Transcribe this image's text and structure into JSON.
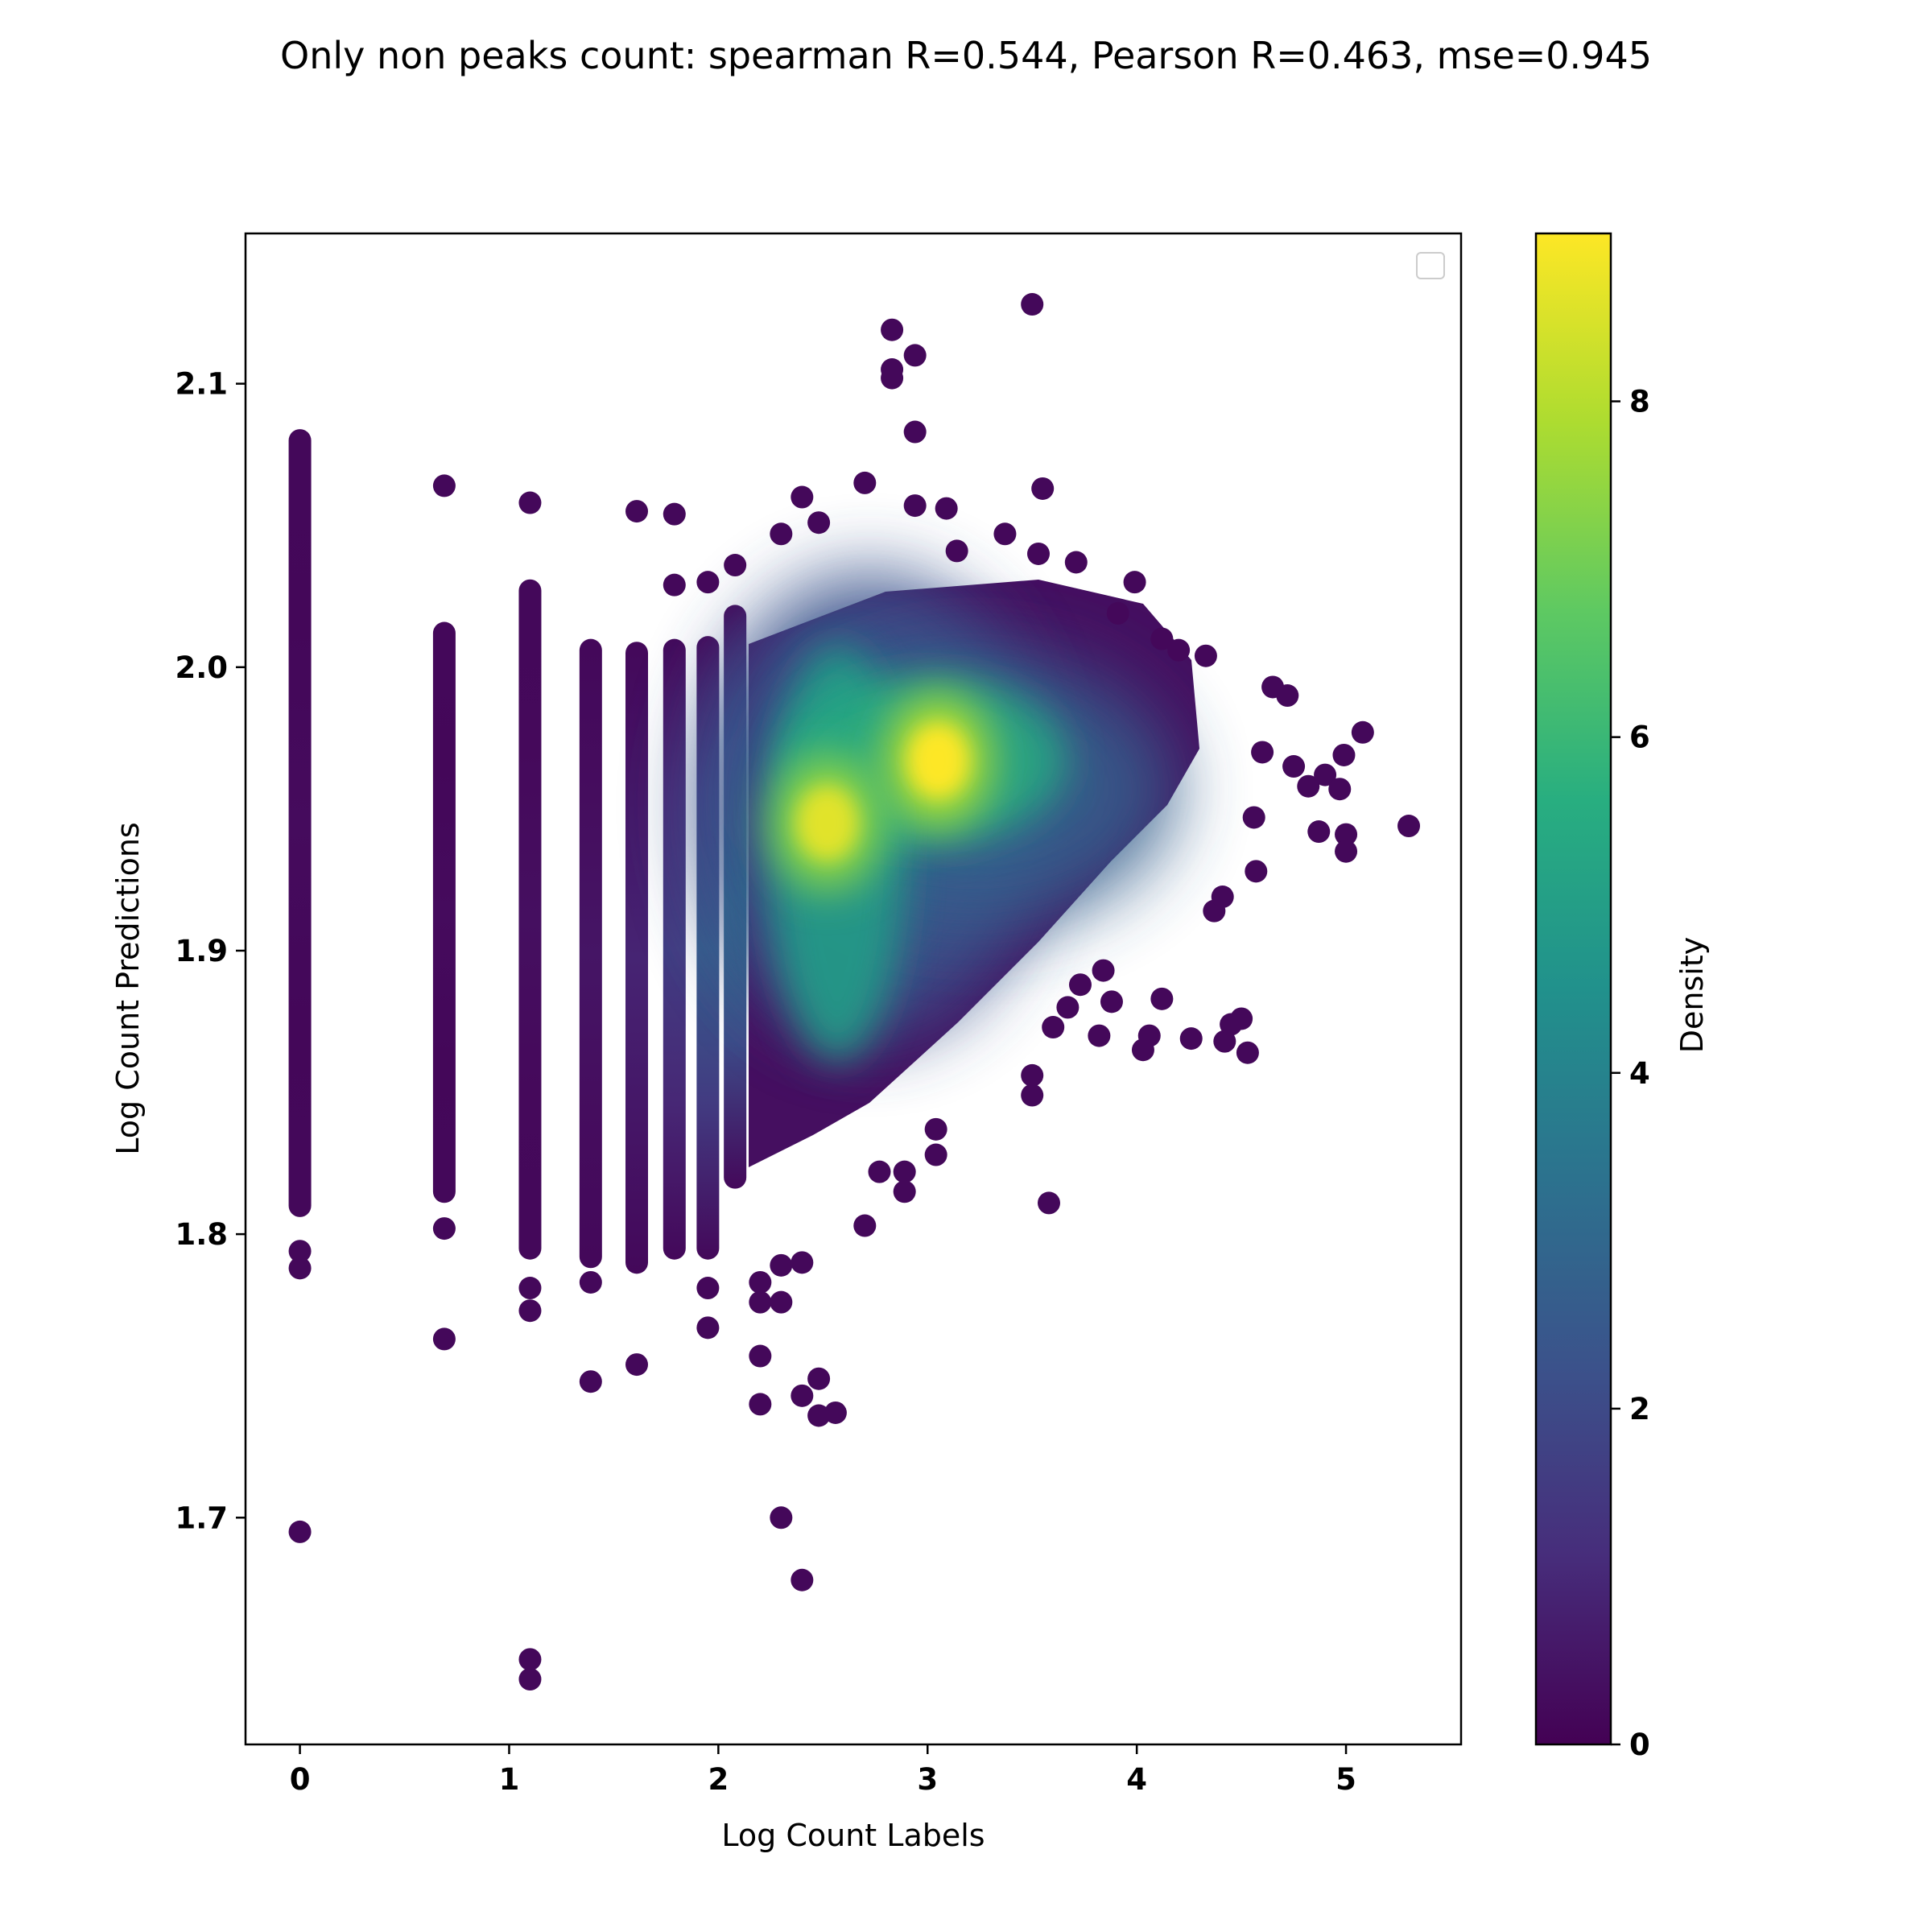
{
  "chart_data": {
    "type": "scatter",
    "title": "Only non peaks count: spearman R=0.544, Pearson R=0.463, mse=0.945",
    "xlabel": "Log Count Labels",
    "ylabel": "Log Count Predictions",
    "xlim": [
      -0.26,
      5.55
    ],
    "ylim": [
      1.62,
      2.153
    ],
    "x_ticks": [
      0,
      1,
      2,
      3,
      4,
      5
    ],
    "y_ticks": [
      1.7,
      1.8,
      1.9,
      2.0,
      2.1
    ],
    "x_tick_labels": [
      "0",
      "1",
      "2",
      "3",
      "4",
      "5"
    ],
    "y_tick_labels": [
      "1.7",
      "1.8",
      "1.9",
      "2.0",
      "2.1"
    ],
    "grid": false,
    "legend": "top-right (empty)",
    "colormap": "viridis",
    "colorbar": {
      "label": "Density",
      "range": [
        0,
        9.0
      ],
      "ticks": [
        0,
        2,
        4,
        6,
        8
      ],
      "tick_labels": [
        "0",
        "2",
        "4",
        "6",
        "8"
      ]
    },
    "density_peaks": [
      {
        "x": 3.05,
        "y": 1.967,
        "density": 9.0
      },
      {
        "x": 2.52,
        "y": 1.945,
        "density": 8.6
      }
    ],
    "columns": [
      {
        "x": 0.0,
        "ymin": 1.81,
        "ymax": 2.08,
        "density": 0.25
      },
      {
        "x": 0.69,
        "ymin": 1.815,
        "ymax": 2.012,
        "density": 0.25
      },
      {
        "x": 1.1,
        "ymin": 1.795,
        "ymax": 2.027,
        "density": 0.35
      },
      {
        "x": 1.39,
        "ymin": 1.792,
        "ymax": 2.006,
        "density": 0.5
      },
      {
        "x": 1.61,
        "ymin": 1.79,
        "ymax": 2.005,
        "density": 0.9
      },
      {
        "x": 1.79,
        "ymin": 1.795,
        "ymax": 2.006,
        "density": 1.6
      },
      {
        "x": 1.95,
        "ymin": 1.795,
        "ymax": 2.007,
        "density": 2.6
      },
      {
        "x": 2.08,
        "ymin": 1.82,
        "ymax": 2.018,
        "density": 3.4
      }
    ],
    "points": [
      {
        "x": 0.0,
        "y": 1.695
      },
      {
        "x": 0.0,
        "y": 1.788
      },
      {
        "x": 0.0,
        "y": 1.794
      },
      {
        "x": 0.69,
        "y": 2.064
      },
      {
        "x": 0.69,
        "y": 1.802
      },
      {
        "x": 0.69,
        "y": 1.763
      },
      {
        "x": 1.1,
        "y": 2.058
      },
      {
        "x": 1.1,
        "y": 1.781
      },
      {
        "x": 1.1,
        "y": 1.773
      },
      {
        "x": 1.1,
        "y": 1.65
      },
      {
        "x": 1.1,
        "y": 1.643
      },
      {
        "x": 1.39,
        "y": 1.748
      },
      {
        "x": 1.39,
        "y": 1.783
      },
      {
        "x": 1.61,
        "y": 2.055
      },
      {
        "x": 1.61,
        "y": 1.754
      },
      {
        "x": 1.79,
        "y": 2.054
      },
      {
        "x": 1.79,
        "y": 2.029
      },
      {
        "x": 1.95,
        "y": 2.03
      },
      {
        "x": 1.95,
        "y": 1.781
      },
      {
        "x": 1.95,
        "y": 1.767
      },
      {
        "x": 2.08,
        "y": 2.036
      },
      {
        "x": 2.2,
        "y": 1.783
      },
      {
        "x": 2.2,
        "y": 1.757
      },
      {
        "x": 2.2,
        "y": 1.74
      },
      {
        "x": 2.2,
        "y": 1.776
      },
      {
        "x": 2.3,
        "y": 1.7
      },
      {
        "x": 2.3,
        "y": 2.047
      },
      {
        "x": 2.3,
        "y": 1.789
      },
      {
        "x": 2.3,
        "y": 1.776
      },
      {
        "x": 2.4,
        "y": 1.678
      },
      {
        "x": 2.4,
        "y": 1.743
      },
      {
        "x": 2.4,
        "y": 1.79
      },
      {
        "x": 2.4,
        "y": 2.06
      },
      {
        "x": 2.48,
        "y": 1.749
      },
      {
        "x": 2.48,
        "y": 1.736
      },
      {
        "x": 2.48,
        "y": 2.051
      },
      {
        "x": 2.56,
        "y": 1.737
      },
      {
        "x": 2.7,
        "y": 2.065
      },
      {
        "x": 2.7,
        "y": 1.803
      },
      {
        "x": 2.83,
        "y": 2.119
      },
      {
        "x": 2.83,
        "y": 2.105
      },
      {
        "x": 2.83,
        "y": 2.102
      },
      {
        "x": 2.94,
        "y": 2.11
      },
      {
        "x": 2.94,
        "y": 2.083
      },
      {
        "x": 2.94,
        "y": 2.057
      },
      {
        "x": 2.89,
        "y": 1.815
      },
      {
        "x": 2.89,
        "y": 1.822
      },
      {
        "x": 2.77,
        "y": 1.822
      },
      {
        "x": 3.04,
        "y": 1.828
      },
      {
        "x": 3.04,
        "y": 1.837
      },
      {
        "x": 3.09,
        "y": 2.056
      },
      {
        "x": 3.14,
        "y": 2.041
      },
      {
        "x": 3.5,
        "y": 2.128
      },
      {
        "x": 3.55,
        "y": 2.063
      },
      {
        "x": 3.37,
        "y": 2.047
      },
      {
        "x": 3.53,
        "y": 2.04
      },
      {
        "x": 3.71,
        "y": 2.037
      },
      {
        "x": 3.58,
        "y": 1.811
      },
      {
        "x": 3.5,
        "y": 1.856
      },
      {
        "x": 3.5,
        "y": 1.849
      },
      {
        "x": 3.99,
        "y": 2.03
      },
      {
        "x": 3.91,
        "y": 2.019
      },
      {
        "x": 4.12,
        "y": 2.01
      },
      {
        "x": 4.2,
        "y": 2.006
      },
      {
        "x": 4.33,
        "y": 2.004
      },
      {
        "x": 4.03,
        "y": 1.865
      },
      {
        "x": 4.06,
        "y": 1.87
      },
      {
        "x": 4.12,
        "y": 1.883
      },
      {
        "x": 4.26,
        "y": 1.869
      },
      {
        "x": 4.42,
        "y": 1.868
      },
      {
        "x": 4.45,
        "y": 1.874
      },
      {
        "x": 4.5,
        "y": 1.876
      },
      {
        "x": 4.53,
        "y": 1.864
      },
      {
        "x": 4.37,
        "y": 1.914
      },
      {
        "x": 4.41,
        "y": 1.919
      },
      {
        "x": 4.56,
        "y": 1.947
      },
      {
        "x": 4.57,
        "y": 1.928
      },
      {
        "x": 4.6,
        "y": 1.97
      },
      {
        "x": 4.65,
        "y": 1.993
      },
      {
        "x": 4.72,
        "y": 1.99
      },
      {
        "x": 4.75,
        "y": 1.965
      },
      {
        "x": 4.82,
        "y": 1.958
      },
      {
        "x": 4.87,
        "y": 1.942
      },
      {
        "x": 4.9,
        "y": 1.962
      },
      {
        "x": 4.97,
        "y": 1.957
      },
      {
        "x": 4.99,
        "y": 1.969
      },
      {
        "x": 5.0,
        "y": 1.941
      },
      {
        "x": 5.0,
        "y": 1.935
      },
      {
        "x": 5.08,
        "y": 1.977
      },
      {
        "x": 5.3,
        "y": 1.944
      },
      {
        "x": 3.82,
        "y": 1.87
      },
      {
        "x": 3.84,
        "y": 1.893
      },
      {
        "x": 3.88,
        "y": 1.882
      },
      {
        "x": 3.73,
        "y": 1.888
      },
      {
        "x": 3.67,
        "y": 1.88
      },
      {
        "x": 3.6,
        "y": 1.873
      }
    ]
  }
}
